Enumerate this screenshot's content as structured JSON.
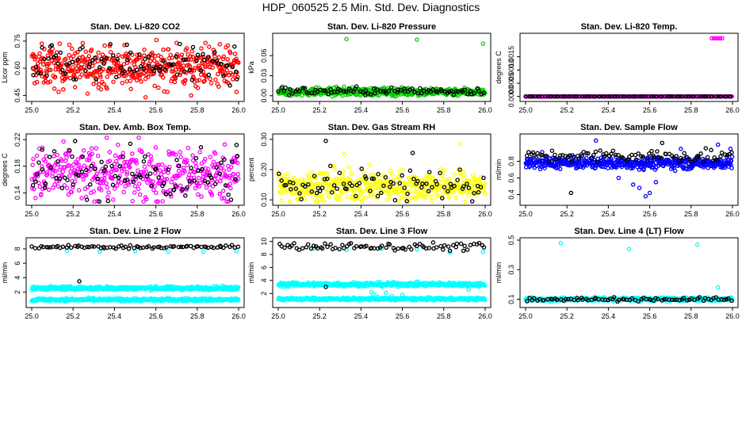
{
  "figure": {
    "title": "HDP_060525  2.5 Min. Std. Dev. Diagnostics"
  },
  "chart_data": [
    {
      "type": "scatter",
      "title": "Stan. Dev. Li-820 CO2",
      "ylabel": "Licor ppm",
      "xlim": [
        25.0,
        26.0
      ],
      "ylim": [
        0.43,
        0.78
      ],
      "xticks": [
        "25.0",
        "25.2",
        "25.4",
        "25.6",
        "25.8",
        "26.0"
      ],
      "yticks": [
        "0.45",
        "0.60",
        "0.75"
      ],
      "series": [
        {
          "name": "primary",
          "color": "#ff0000",
          "kind": "band",
          "x_range": [
            25.0,
            26.0
          ],
          "center": 0.61,
          "spread": 0.055,
          "count": 480,
          "outliers": [
            [
              25.13,
              0.47
            ],
            [
              25.27,
              0.46
            ],
            [
              25.55,
              0.44
            ],
            [
              25.77,
              0.45
            ],
            [
              25.99,
              0.47
            ],
            [
              25.84,
              0.74
            ],
            [
              25.7,
              0.74
            ]
          ]
        },
        {
          "name": "secondary",
          "color": "#000000",
          "kind": "band",
          "x_range": [
            25.0,
            26.0
          ],
          "center": 0.61,
          "spread": 0.05,
          "count": 90,
          "outliers": [
            [
              25.09,
              0.72
            ],
            [
              25.46,
              0.73
            ],
            [
              25.98,
              0.72
            ]
          ]
        }
      ]
    },
    {
      "type": "scatter",
      "title": "Stan. Dev. Li-820 Pressure",
      "ylabel": "kPa",
      "xlim": [
        25.0,
        26.0
      ],
      "ylim": [
        -0.005,
        0.09
      ],
      "xticks": [
        "25.0",
        "25.2",
        "25.4",
        "25.6",
        "25.8",
        "26.0"
      ],
      "yticks": [
        "0.00",
        "0.03",
        "0.06"
      ],
      "series": [
        {
          "name": "primary",
          "color": "#00cc00",
          "kind": "band",
          "x_range": [
            25.0,
            26.0
          ],
          "center": 0.006,
          "spread": 0.003,
          "count": 450,
          "outliers": [
            [
              25.33,
              0.085
            ],
            [
              25.67,
              0.084
            ],
            [
              25.99,
              0.078
            ]
          ]
        },
        {
          "name": "secondary",
          "color": "#000000",
          "kind": "band",
          "x_range": [
            25.0,
            26.0
          ],
          "center": 0.007,
          "spread": 0.003,
          "count": 90,
          "outliers": []
        }
      ]
    },
    {
      "type": "scatter",
      "title": "Stan. Dev. Li-820 Temp.",
      "ylabel": "degrees C",
      "xlim": [
        25.0,
        26.0
      ],
      "ylim": [
        -0.0001,
        0.0023
      ],
      "xticks": [
        "25.0",
        "25.2",
        "25.4",
        "25.6",
        "25.8",
        "26.0"
      ],
      "yticks": [
        "0.0000",
        "0.0005",
        "0.0010",
        "0.0015"
      ],
      "series": [
        {
          "name": "primary",
          "color": "#ff00ff",
          "kind": "band",
          "x_range": [
            25.0,
            26.0
          ],
          "center": 0.0,
          "spread": 0.0,
          "count": 220,
          "outliers": [
            [
              25.9,
              0.0022
            ],
            [
              25.91,
              0.0022
            ],
            [
              25.92,
              0.0022
            ],
            [
              25.93,
              0.0022
            ],
            [
              25.94,
              0.0022
            ],
            [
              25.95,
              0.0022
            ]
          ]
        },
        {
          "name": "secondary",
          "color": "#000000",
          "kind": "band",
          "x_range": [
            25.0,
            26.0
          ],
          "center": 0.0,
          "spread": 0.0,
          "count": 90,
          "outliers": []
        }
      ]
    },
    {
      "type": "scatter",
      "title": "Stan. Dev. Amb. Box Temp.",
      "ylabel": "degrees C",
      "xlim": [
        25.0,
        26.0
      ],
      "ylim": [
        0.125,
        0.225
      ],
      "xticks": [
        "25.0",
        "25.2",
        "25.4",
        "25.6",
        "25.8",
        "26.0"
      ],
      "yticks": [
        "0.14",
        "0.18",
        "0.22"
      ],
      "series": [
        {
          "name": "primary",
          "color": "#ff00ff",
          "kind": "band",
          "x_range": [
            25.0,
            26.0
          ],
          "center": 0.168,
          "spread": 0.02,
          "count": 440,
          "outliers": []
        },
        {
          "name": "secondary",
          "color": "#000000",
          "kind": "band",
          "x_range": [
            25.0,
            26.0
          ],
          "center": 0.168,
          "spread": 0.02,
          "count": 90,
          "outliers": [
            [
              25.05,
              0.205
            ],
            [
              25.21,
              0.218
            ],
            [
              25.99,
              0.212
            ]
          ]
        }
      ]
    },
    {
      "type": "scatter",
      "title": "Stan. Dev. Gas Stream RH",
      "ylabel": "percent",
      "xlim": [
        25.0,
        26.0
      ],
      "ylim": [
        0.09,
        0.31
      ],
      "xticks": [
        "25.0",
        "25.2",
        "25.4",
        "25.6",
        "25.8",
        "26.0"
      ],
      "yticks": [
        "0.10",
        "0.20",
        "0.30"
      ],
      "series": [
        {
          "name": "primary",
          "color": "#ffff00",
          "kind": "band",
          "x_range": [
            25.0,
            26.0
          ],
          "center": 0.145,
          "spread": 0.025,
          "count": 460,
          "outliers": [
            [
              25.88,
              0.285
            ],
            [
              25.32,
              0.25
            ]
          ]
        },
        {
          "name": "secondary",
          "color": "#000000",
          "kind": "band",
          "x_range": [
            25.0,
            26.0
          ],
          "center": 0.15,
          "spread": 0.025,
          "count": 85,
          "outliers": [
            [
              25.23,
              0.295
            ],
            [
              25.65,
              0.255
            ]
          ]
        }
      ]
    },
    {
      "type": "scatter",
      "title": "Stan. Dev. Sample Flow",
      "ylabel": "ml/min",
      "xlim": [
        25.0,
        26.0
      ],
      "ylim": [
        0.3,
        1.1
      ],
      "xticks": [
        "25.0",
        "25.2",
        "25.4",
        "25.6",
        "25.8",
        "26.0"
      ],
      "yticks": [
        "0.4",
        "0.6",
        "0.8"
      ],
      "series": [
        {
          "name": "primary",
          "color": "#0000ff",
          "kind": "band",
          "x_range": [
            25.0,
            26.0
          ],
          "center": 0.78,
          "spread": 0.035,
          "count": 460,
          "outliers": [
            [
              25.08,
              0.91
            ],
            [
              25.34,
              1.05
            ],
            [
              25.45,
              0.6
            ],
            [
              25.52,
              0.52
            ],
            [
              25.55,
              0.48
            ],
            [
              25.58,
              0.38
            ],
            [
              25.6,
              0.42
            ],
            [
              25.63,
              0.55
            ],
            [
              25.75,
              0.95
            ],
            [
              25.99,
              0.95
            ],
            [
              25.93,
              1.0
            ]
          ]
        },
        {
          "name": "secondary",
          "color": "#000000",
          "kind": "band",
          "x_range": [
            25.0,
            26.0
          ],
          "center": 0.86,
          "spread": 0.04,
          "count": 90,
          "outliers": [
            [
              25.22,
              0.42
            ],
            [
              25.66,
              1.02
            ]
          ]
        }
      ]
    },
    {
      "type": "scatter",
      "title": "Stan. Dev. Line 2 Flow",
      "ylabel": "ml/min",
      "xlim": [
        25.0,
        26.0
      ],
      "ylim": [
        0.2,
        9.2
      ],
      "xticks": [
        "25.0",
        "25.2",
        "25.4",
        "25.6",
        "25.8",
        "26.0"
      ],
      "yticks": [
        "2",
        "4",
        "6",
        "8"
      ],
      "series": [
        {
          "name": "band-upper",
          "color": "#00ffff",
          "kind": "band",
          "x_range": [
            25.0,
            26.0
          ],
          "center": 2.55,
          "spread": 0.12,
          "count": 420,
          "outliers": []
        },
        {
          "name": "band-lower",
          "color": "#00ffff",
          "kind": "band",
          "x_range": [
            25.0,
            26.0
          ],
          "center": 0.95,
          "spread": 0.1,
          "count": 420,
          "outliers": [
            [
              25.17,
              7.7
            ],
            [
              25.33,
              7.6
            ],
            [
              25.5,
              7.7
            ],
            [
              25.66,
              7.6
            ],
            [
              25.83,
              7.6
            ],
            [
              25.99,
              7.7
            ]
          ]
        },
        {
          "name": "secondary",
          "color": "#000000",
          "kind": "band",
          "x_range": [
            25.0,
            26.0
          ],
          "center": 8.25,
          "spread": 0.12,
          "count": 80,
          "outliers": [
            [
              25.23,
              3.5
            ]
          ]
        }
      ]
    },
    {
      "type": "scatter",
      "title": "Stan. Dev. Line 3 Flow",
      "ylabel": "ml/min",
      "xlim": [
        25.0,
        26.0
      ],
      "ylim": [
        0.2,
        10.2
      ],
      "xticks": [
        "25.0",
        "25.2",
        "25.4",
        "25.6",
        "25.8",
        "26.0"
      ],
      "yticks": [
        "2",
        "4",
        "6",
        "8",
        "10"
      ],
      "series": [
        {
          "name": "band-upper",
          "color": "#00ffff",
          "kind": "band",
          "x_range": [
            25.0,
            26.0
          ],
          "center": 3.4,
          "spread": 0.15,
          "count": 420,
          "outliers": [
            [
              25.45,
              2.2
            ],
            [
              25.46,
              1.9
            ],
            [
              25.48,
              1.5
            ],
            [
              25.52,
              2.1
            ],
            [
              25.55,
              1.6
            ],
            [
              25.6,
              1.8
            ],
            [
              25.92,
              2.6
            ]
          ]
        },
        {
          "name": "band-lower",
          "color": "#00ffff",
          "kind": "band",
          "x_range": [
            25.0,
            26.0
          ],
          "center": 1.15,
          "spread": 0.1,
          "count": 420,
          "outliers": [
            [
              25.17,
              8.9
            ],
            [
              25.33,
              8.7
            ],
            [
              25.5,
              8.9
            ],
            [
              25.67,
              8.8
            ],
            [
              25.83,
              8.3
            ],
            [
              25.99,
              8.4
            ]
          ]
        },
        {
          "name": "secondary",
          "color": "#000000",
          "kind": "band",
          "x_range": [
            25.0,
            26.0
          ],
          "center": 9.2,
          "spread": 0.3,
          "count": 80,
          "outliers": [
            [
              25.23,
              3.0
            ]
          ]
        }
      ]
    },
    {
      "type": "scatter",
      "title": "Stan. Dev. Line 4 (LT) Flow",
      "ylabel": "ml/min",
      "xlim": [
        25.0,
        26.0
      ],
      "ylim": [
        0.06,
        0.5
      ],
      "xticks": [
        "25.0",
        "25.2",
        "25.4",
        "25.6",
        "25.8",
        "26.0"
      ],
      "yticks": [
        "0.1",
        "0.3",
        "0.5"
      ],
      "series": [
        {
          "name": "primary",
          "color": "#00ffff",
          "kind": "band",
          "x_range": [
            25.0,
            26.0
          ],
          "center": 0.1,
          "spread": 0.006,
          "count": 460,
          "outliers": [
            [
              25.17,
              0.48
            ],
            [
              25.5,
              0.44
            ],
            [
              25.83,
              0.47
            ],
            [
              25.93,
              0.18
            ]
          ]
        },
        {
          "name": "secondary",
          "color": "#000000",
          "kind": "band",
          "x_range": [
            25.0,
            26.0
          ],
          "center": 0.1,
          "spread": 0.006,
          "count": 80,
          "outliers": []
        }
      ]
    }
  ]
}
